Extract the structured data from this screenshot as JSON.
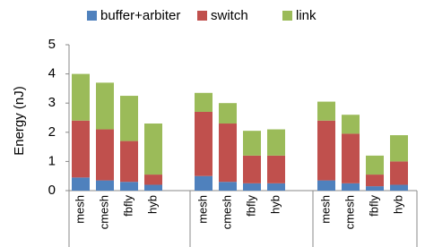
{
  "chart_data": {
    "type": "stacked_bar",
    "y_label": "Energy (nJ)",
    "categories": [
      "mesh",
      "cmesh",
      "fbfly",
      "hyb",
      "mesh",
      "cmesh",
      "fbfly",
      "hyb",
      "mesh",
      "cmesh",
      "fbfly",
      "hyb"
    ],
    "series": [
      {
        "name": "buffer+arbiter",
        "color": "#4f81bd",
        "values": [
          0.45,
          0.35,
          0.3,
          0.2,
          0.5,
          0.3,
          0.25,
          0.25,
          0.35,
          0.25,
          0.15,
          0.2
        ]
      },
      {
        "name": "switch",
        "color": "#c0504d",
        "values": [
          1.95,
          1.75,
          1.4,
          0.35,
          2.2,
          2.0,
          0.95,
          0.95,
          2.05,
          1.7,
          0.4,
          0.8
        ]
      },
      {
        "name": "link",
        "color": "#9bbb59",
        "values": [
          1.6,
          1.6,
          1.55,
          1.75,
          0.65,
          0.7,
          0.85,
          0.9,
          0.65,
          0.65,
          0.65,
          0.9
        ]
      }
    ],
    "ylim": [
      0,
      5
    ],
    "yticks": [
      0,
      1,
      2,
      3,
      4,
      5
    ],
    "legend": "top"
  }
}
